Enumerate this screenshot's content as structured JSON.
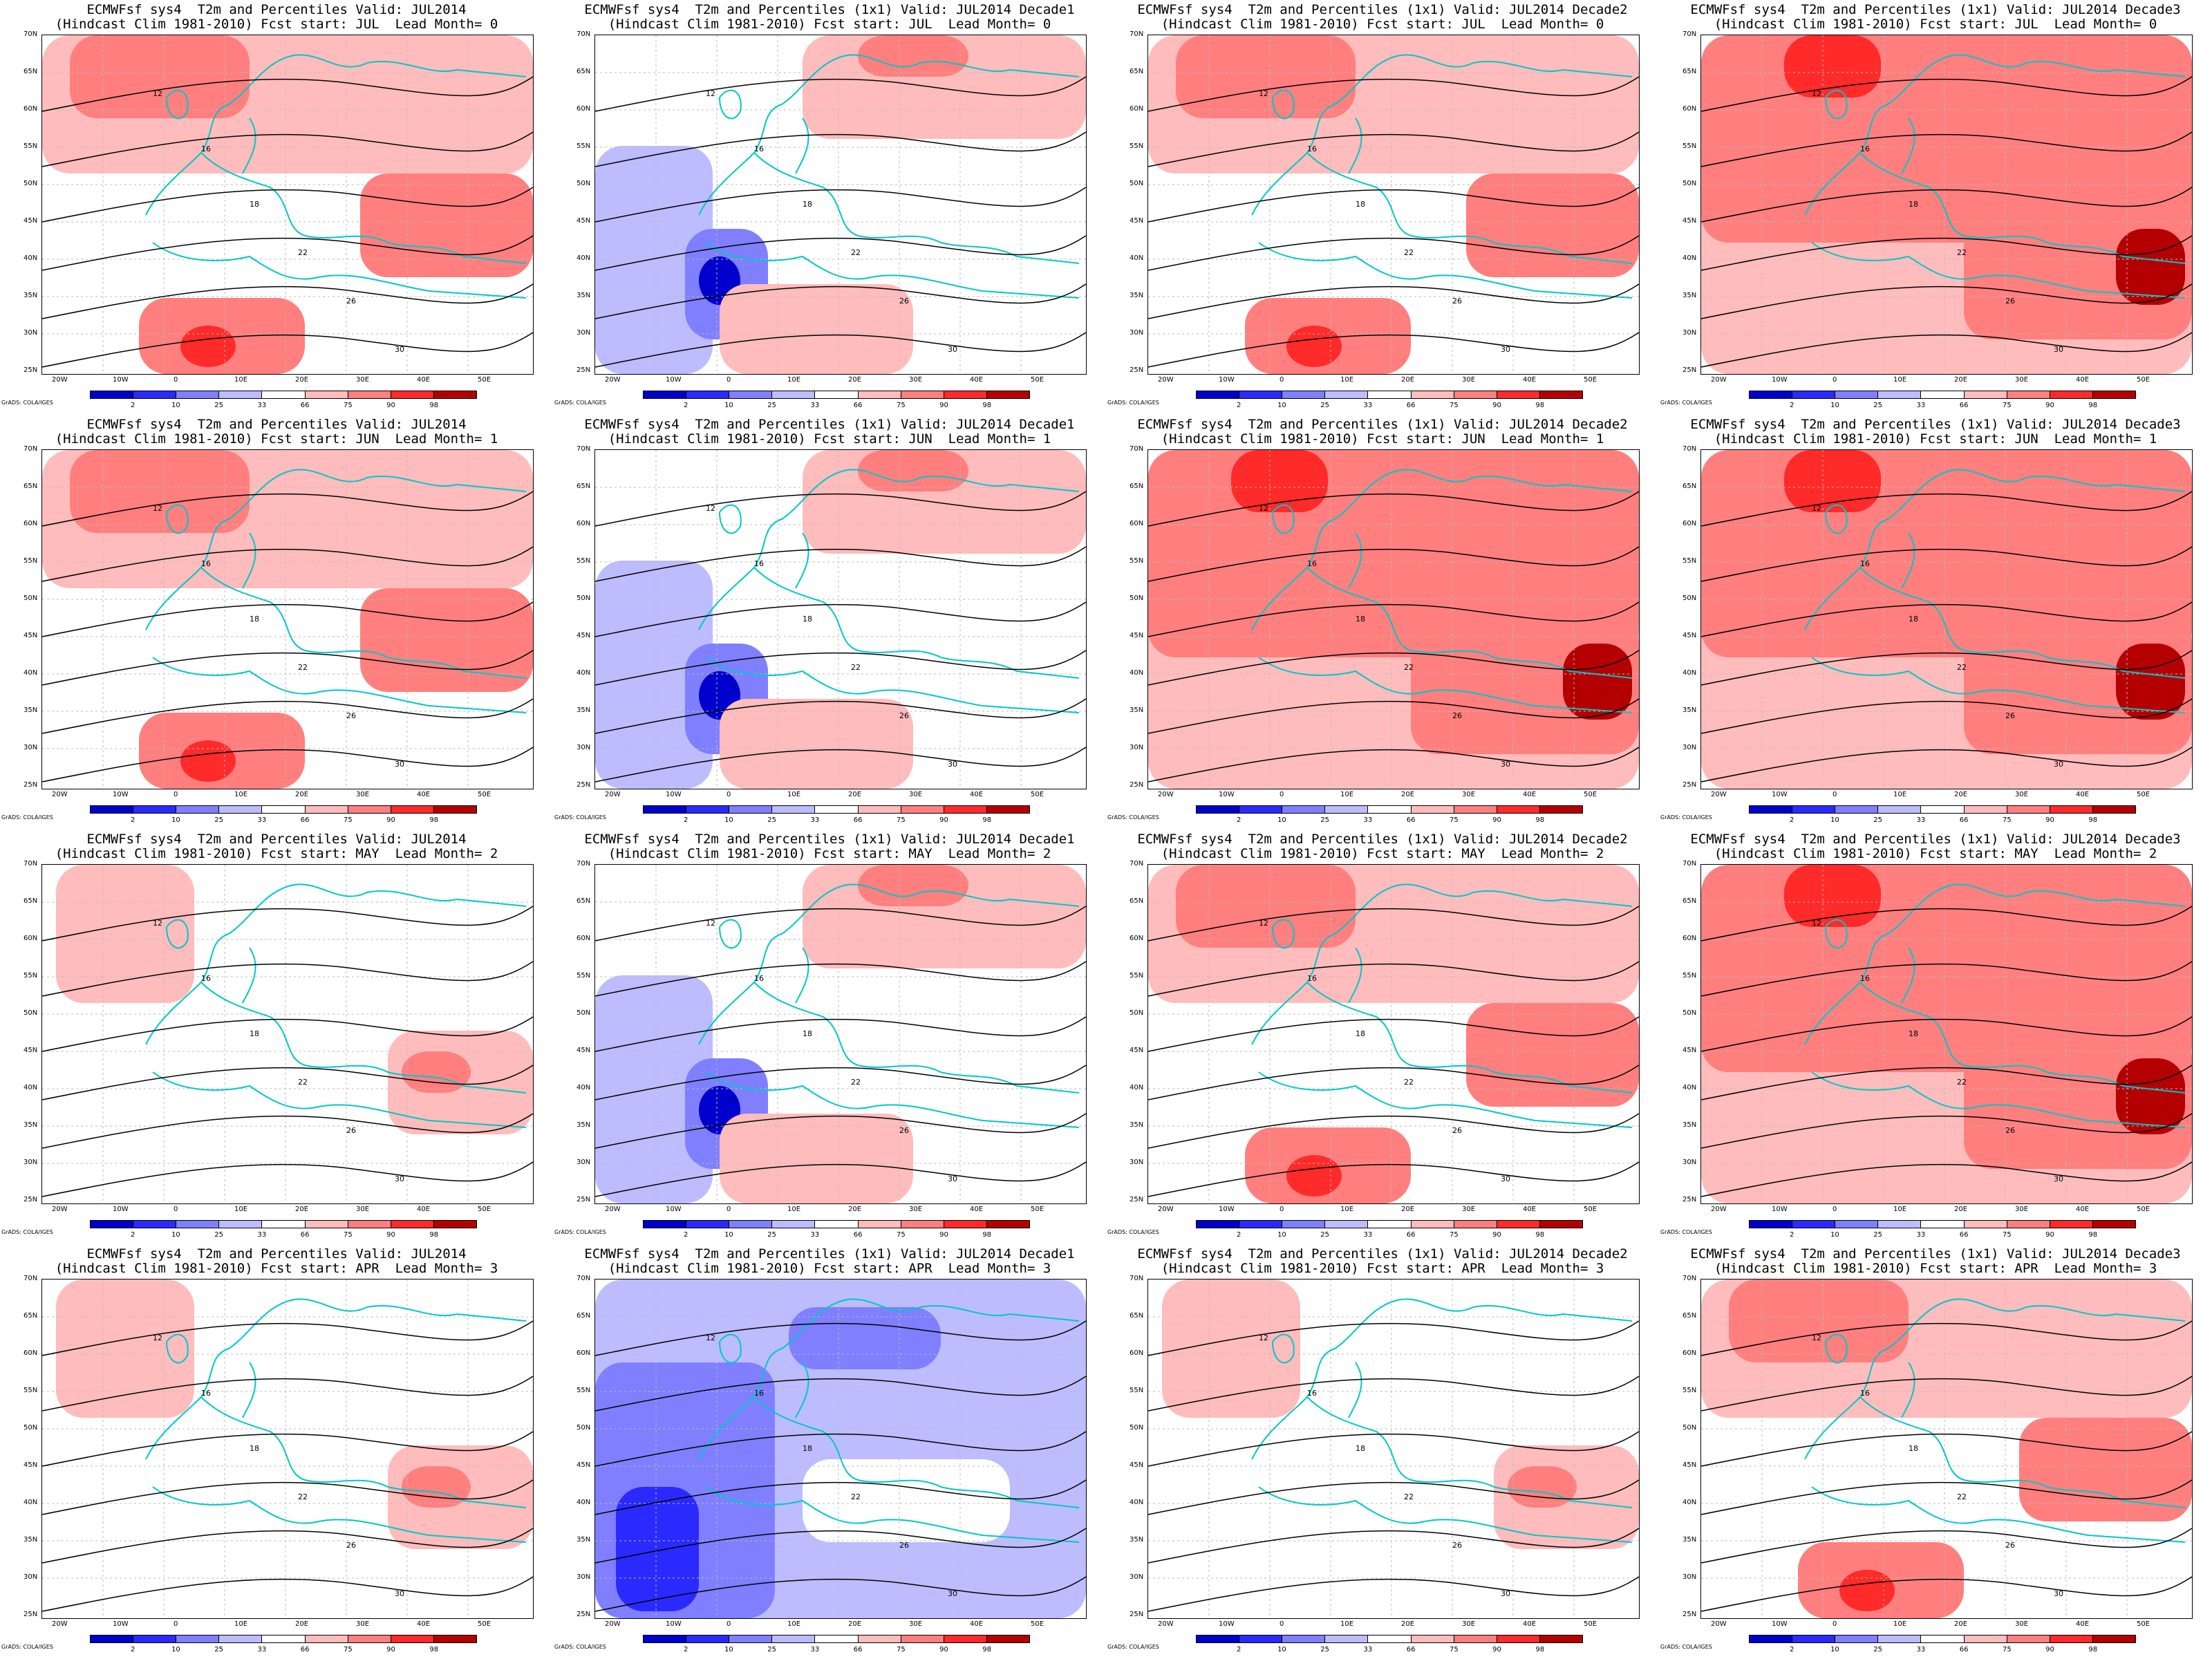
{
  "panels": [
    {
      "title_line1": "ECMWFsf sys4  T2m and Percentiles Valid: JUL2014",
      "title_line2": "(Hindcast Clim 1981-2010) Fcst start: JUL  Lead Month= 0",
      "anomaly": "warm"
    },
    {
      "title_line1": "ECMWFsf sys4  T2m and Percentiles (1x1) Valid: JUL2014 Decade1",
      "title_line2": "(Hindcast Clim 1981-2010) Fcst start: JUL  Lead Month= 0",
      "anomaly": "mixed-cold-west"
    },
    {
      "title_line1": "ECMWFsf sys4  T2m and Percentiles (1x1) Valid: JUL2014 Decade2",
      "title_line2": "(Hindcast Clim 1981-2010) Fcst start: JUL  Lead Month= 0",
      "anomaly": "warm"
    },
    {
      "title_line1": "ECMWFsf sys4  T2m and Percentiles (1x1) Valid: JUL2014 Decade3",
      "title_line2": "(Hindcast Clim 1981-2010) Fcst start: JUL  Lead Month= 0",
      "anomaly": "very-warm"
    },
    {
      "title_line1": "ECMWFsf sys4  T2m and Percentiles Valid: JUL2014",
      "title_line2": "(Hindcast Clim 1981-2010) Fcst start: JUN  Lead Month= 1",
      "anomaly": "warm"
    },
    {
      "title_line1": "ECMWFsf sys4  T2m and Percentiles (1x1) Valid: JUL2014 Decade1",
      "title_line2": "(Hindcast Clim 1981-2010) Fcst start: JUN  Lead Month= 1",
      "anomaly": "mixed-cold-west"
    },
    {
      "title_line1": "ECMWFsf sys4  T2m and Percentiles (1x1) Valid: JUL2014 Decade2",
      "title_line2": "(Hindcast Clim 1981-2010) Fcst start: JUN  Lead Month= 1",
      "anomaly": "very-warm"
    },
    {
      "title_line1": "ECMWFsf sys4  T2m and Percentiles (1x1) Valid: JUL2014 Decade3",
      "title_line2": "(Hindcast Clim 1981-2010) Fcst start: JUN  Lead Month= 1",
      "anomaly": "very-warm"
    },
    {
      "title_line1": "ECMWFsf sys4  T2m and Percentiles Valid: JUL2014",
      "title_line2": "(Hindcast Clim 1981-2010) Fcst start: MAY  Lead Month= 2",
      "anomaly": "weak-warm"
    },
    {
      "title_line1": "ECMWFsf sys4  T2m and Percentiles (1x1) Valid: JUL2014 Decade1",
      "title_line2": "(Hindcast Clim 1981-2010) Fcst start: MAY  Lead Month= 2",
      "anomaly": "mixed-cold-west"
    },
    {
      "title_line1": "ECMWFsf sys4  T2m and Percentiles (1x1) Valid: JUL2014 Decade2",
      "title_line2": "(Hindcast Clim 1981-2010) Fcst start: MAY  Lead Month= 2",
      "anomaly": "warm"
    },
    {
      "title_line1": "ECMWFsf sys4  T2m and Percentiles (1x1) Valid: JUL2014 Decade3",
      "title_line2": "(Hindcast Clim 1981-2010) Fcst start: MAY  Lead Month= 2",
      "anomaly": "very-warm"
    },
    {
      "title_line1": "ECMWFsf sys4  T2m and Percentiles Valid: JUL2014",
      "title_line2": "(Hindcast Clim 1981-2010) Fcst start: APR  Lead Month= 3",
      "anomaly": "weak-warm"
    },
    {
      "title_line1": "ECMWFsf sys4  T2m and Percentiles (1x1) Valid: JUL2014 Decade1",
      "title_line2": "(Hindcast Clim 1981-2010) Fcst start: APR  Lead Month= 3",
      "anomaly": "cold"
    },
    {
      "title_line1": "ECMWFsf sys4  T2m and Percentiles (1x1) Valid: JUL2014 Decade2",
      "title_line2": "(Hindcast Clim 1981-2010) Fcst start: APR  Lead Month= 3",
      "anomaly": "weak-warm"
    },
    {
      "title_line1": "ECMWFsf sys4  T2m and Percentiles (1x1) Valid: JUL2014 Decade3",
      "title_line2": "(Hindcast Clim 1981-2010) Fcst start: APR  Lead Month= 3",
      "anomaly": "warm"
    }
  ],
  "lat_labels": [
    "70N",
    "65N",
    "60N",
    "55N",
    "50N",
    "45N",
    "40N",
    "35N",
    "30N",
    "25N"
  ],
  "lon_labels": [
    "20W",
    "10W",
    "0",
    "10E",
    "20E",
    "30E",
    "40E",
    "50E"
  ],
  "colorbar": {
    "ticks": [
      "2",
      "10",
      "25",
      "33",
      "66",
      "75",
      "90",
      "98"
    ],
    "colors": [
      "#0000cc",
      "#2a2aff",
      "#7f7fff",
      "#bcbcff",
      "#ffffff",
      "#ffbcbc",
      "#ff7f7f",
      "#ff2a2a",
      "#b40000"
    ]
  },
  "credit": "GrADS: COLA/IGES",
  "contour_labels": [
    "12",
    "16",
    "18",
    "22",
    "26",
    "30"
  ],
  "colors": {
    "coastline": "#00c8c8",
    "contour": "#000000",
    "warm": "#ff7f7f",
    "cold": "#7f7fff"
  }
}
